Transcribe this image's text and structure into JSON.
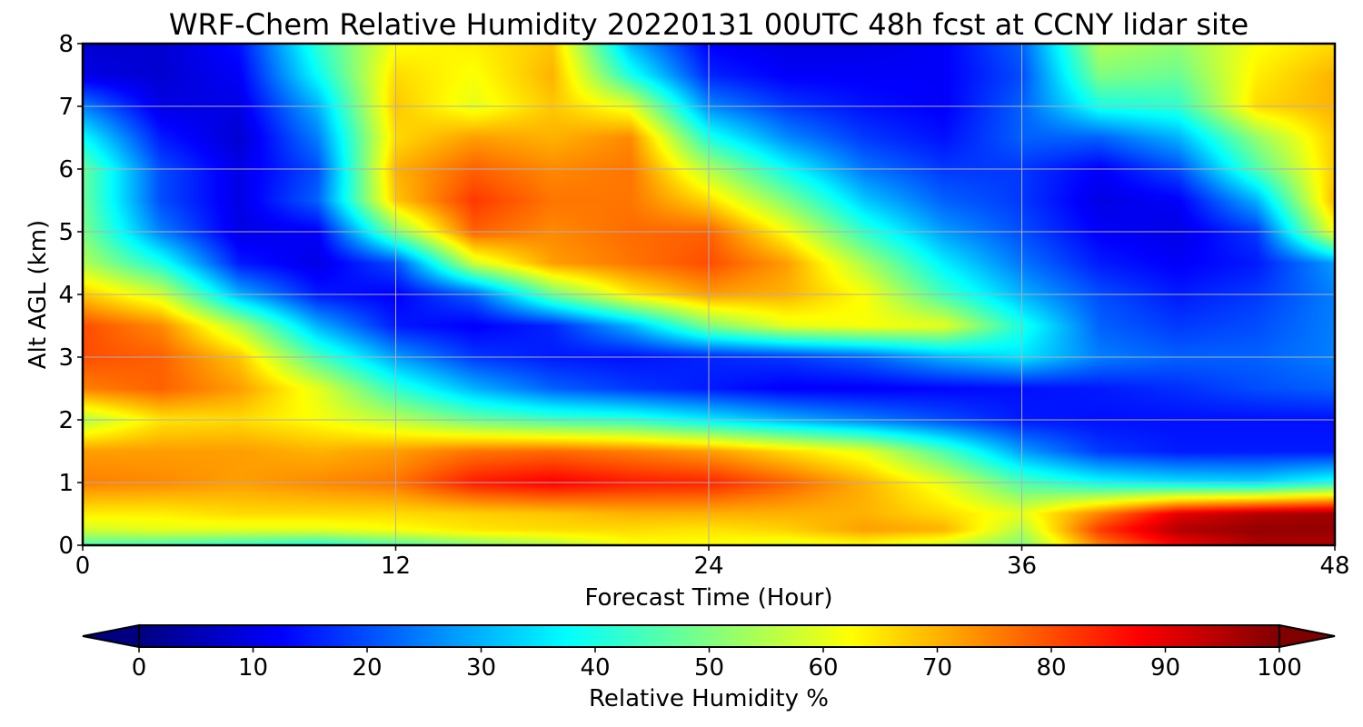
{
  "chart_data": {
    "type": "heatmap",
    "title": "WRF-Chem Relative Humidity 20220131 00UTC 48h fcst at CCNY lidar site",
    "xlabel": "Forecast Time (Hour)",
    "ylabel": "Alt AGL (km)",
    "xlim": [
      0,
      48
    ],
    "ylim": [
      0,
      8
    ],
    "xticks": [
      0,
      12,
      24,
      36,
      48
    ],
    "xtick_labels": [
      "0",
      "12",
      "24",
      "36",
      "48"
    ],
    "yticks": [
      0,
      1,
      2,
      3,
      4,
      5,
      6,
      7,
      8
    ],
    "ytick_labels": [
      "0",
      "1",
      "2",
      "3",
      "4",
      "5",
      "6",
      "7",
      "8"
    ],
    "grid": true,
    "colormap": "jet",
    "colorbar": {
      "label": "Relative Humidity %",
      "orientation": "horizontal",
      "range": [
        0,
        100
      ],
      "extend": "both",
      "ticks": [
        0,
        10,
        20,
        30,
        40,
        50,
        60,
        70,
        80,
        90,
        100
      ],
      "tick_labels": [
        "0",
        "10",
        "20",
        "30",
        "40",
        "50",
        "60",
        "70",
        "80",
        "90",
        "100"
      ]
    },
    "x": [
      0,
      3,
      6,
      9,
      12,
      15,
      18,
      21,
      24,
      27,
      30,
      33,
      36,
      39,
      42,
      45,
      48
    ],
    "y": [
      0,
      0.25,
      0.5,
      1,
      1.5,
      2,
      2.5,
      3,
      3.5,
      4,
      4.5,
      5,
      5.5,
      6,
      6.5,
      7,
      7.5,
      8
    ],
    "z": [
      [
        45,
        44,
        42,
        40,
        45,
        50,
        55,
        62,
        62,
        60,
        62,
        58,
        50,
        75,
        88,
        95,
        95
      ],
      [
        58,
        60,
        60,
        60,
        62,
        65,
        66,
        66,
        65,
        67,
        72,
        70,
        55,
        82,
        95,
        98,
        98
      ],
      [
        64,
        64,
        66,
        66,
        66,
        67,
        68,
        70,
        70,
        70,
        70,
        66,
        60,
        75,
        90,
        95,
        97
      ],
      [
        75,
        74,
        72,
        74,
        76,
        85,
        88,
        85,
        84,
        78,
        70,
        60,
        45,
        38,
        35,
        34,
        40
      ],
      [
        72,
        72,
        72,
        70,
        72,
        76,
        77,
        75,
        72,
        66,
        60,
        45,
        28,
        18,
        15,
        15,
        15
      ],
      [
        55,
        65,
        66,
        62,
        56,
        48,
        44,
        42,
        36,
        30,
        25,
        20,
        15,
        14,
        14,
        14,
        14
      ],
      [
        75,
        78,
        72,
        60,
        42,
        30,
        22,
        18,
        15,
        12,
        12,
        13,
        14,
        15,
        17,
        20,
        22
      ],
      [
        80,
        78,
        68,
        45,
        28,
        18,
        15,
        14,
        16,
        18,
        22,
        30,
        35,
        25,
        22,
        22,
        25
      ],
      [
        80,
        74,
        55,
        30,
        15,
        12,
        16,
        30,
        50,
        60,
        62,
        60,
        40,
        22,
        18,
        20,
        25
      ],
      [
        68,
        58,
        30,
        15,
        12,
        22,
        48,
        64,
        72,
        70,
        62,
        44,
        30,
        20,
        15,
        18,
        25
      ],
      [
        55,
        40,
        15,
        10,
        20,
        58,
        72,
        76,
        80,
        72,
        54,
        36,
        24,
        15,
        12,
        15,
        28
      ],
      [
        50,
        25,
        10,
        12,
        50,
        78,
        74,
        77,
        78,
        62,
        42,
        28,
        20,
        12,
        10,
        18,
        62
      ],
      [
        48,
        20,
        10,
        22,
        68,
        82,
        76,
        76,
        66,
        50,
        32,
        22,
        18,
        10,
        12,
        30,
        70
      ],
      [
        48,
        20,
        10,
        20,
        70,
        78,
        74,
        76,
        55,
        38,
        24,
        18,
        18,
        12,
        20,
        45,
        68
      ],
      [
        38,
        15,
        8,
        25,
        66,
        72,
        70,
        74,
        40,
        26,
        18,
        14,
        22,
        22,
        30,
        52,
        68
      ],
      [
        25,
        10,
        10,
        30,
        68,
        60,
        68,
        60,
        26,
        18,
        14,
        12,
        22,
        40,
        42,
        66,
        70
      ],
      [
        10,
        8,
        12,
        38,
        66,
        62,
        70,
        40,
        16,
        12,
        12,
        12,
        20,
        50,
        48,
        64,
        70
      ],
      [
        8,
        8,
        14,
        42,
        62,
        64,
        68,
        30,
        12,
        10,
        10,
        12,
        22,
        55,
        52,
        62,
        66
      ]
    ]
  }
}
